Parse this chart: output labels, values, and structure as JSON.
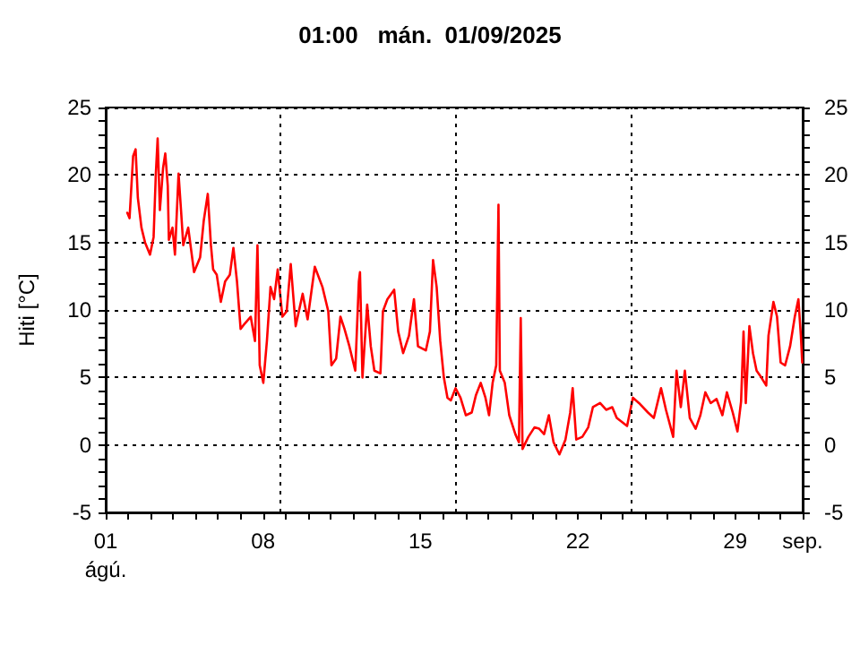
{
  "chart_data": {
    "type": "line",
    "title": "01:00   mán.  01/09/2025",
    "ylabel": "Hiti [°C]",
    "x": [
      1.96,
      2.06,
      2.22,
      2.33,
      2.43,
      2.59,
      2.75,
      2.97,
      3.13,
      3.23,
      3.31,
      3.41,
      3.55,
      3.65,
      3.76,
      3.81,
      3.97,
      4.08,
      4.24,
      4.35,
      4.45,
      4.67,
      4.93,
      5.2,
      5.36,
      5.54,
      5.68,
      5.78,
      5.94,
      6.12,
      6.31,
      6.52,
      6.68,
      6.84,
      7.0,
      7.19,
      7.45,
      7.64,
      7.75,
      7.85,
      8.01,
      8.17,
      8.33,
      8.49,
      8.65,
      8.86,
      9.05,
      9.23,
      9.45,
      9.76,
      9.98,
      10.3,
      10.64,
      10.9,
      11.04,
      11.25,
      11.44,
      11.62,
      11.84,
      12.1,
      12.26,
      12.31,
      12.42,
      12.63,
      12.79,
      12.95,
      13.22,
      13.33,
      13.53,
      13.83,
      14.01,
      14.23,
      14.49,
      14.71,
      14.89,
      15.24,
      15.42,
      15.56,
      15.72,
      15.88,
      16.04,
      16.2,
      16.35,
      16.56,
      16.78,
      17.02,
      17.28,
      17.47,
      17.68,
      17.89,
      18.05,
      18.21,
      18.37,
      18.47,
      18.53,
      18.75,
      18.95,
      19.22,
      19.38,
      19.46,
      19.54,
      19.8,
      20.07,
      20.28,
      20.5,
      20.71,
      20.92,
      21.18,
      21.45,
      21.66,
      21.77,
      21.93,
      22.2,
      22.46,
      22.67,
      22.99,
      23.26,
      23.53,
      23.73,
      24.19,
      24.45,
      24.72,
      25.12,
      25.38,
      25.7,
      25.92,
      26.24,
      26.39,
      26.58,
      26.76,
      26.98,
      27.24,
      27.45,
      27.67,
      27.91,
      28.17,
      28.43,
      28.63,
      28.89,
      29.1,
      29.26,
      29.37,
      29.47,
      29.63,
      29.79,
      29.95,
      30.16,
      30.38,
      30.48,
      30.7,
      30.86,
      31.02,
      31.22,
      31.44,
      31.65,
      31.81,
      31.92,
      31.98
    ],
    "series": [
      {
        "color": "#ff0000",
        "values": [
          17.2,
          16.8,
          21.4,
          21.9,
          18.3,
          16.1,
          15,
          14.1,
          15.4,
          20.1,
          22.7,
          17.4,
          20.5,
          21.6,
          19.2,
          15.2,
          16.1,
          14.1,
          20.1,
          17.4,
          14.8,
          16.1,
          12.8,
          13.9,
          16.6,
          18.6,
          14.8,
          13,
          12.6,
          10.6,
          12.1,
          12.6,
          14.6,
          12.1,
          8.6,
          9,
          9.5,
          7.7,
          14.8,
          5.9,
          4.6,
          7.7,
          11.7,
          10.8,
          13,
          9.5,
          9.9,
          13.4,
          8.8,
          11.2,
          9.3,
          13.2,
          11.7,
          9.9,
          5.9,
          6.4,
          9.5,
          8.6,
          7.3,
          5.5,
          12.1,
          12.8,
          5,
          10.4,
          7.3,
          5.5,
          5.3,
          9.9,
          10.8,
          11.5,
          8.4,
          6.8,
          8.1,
          10.8,
          7.3,
          7,
          8.4,
          13.7,
          11.7,
          7.7,
          5,
          3.5,
          3.3,
          4.2,
          3.5,
          2.2,
          2.4,
          3.7,
          4.6,
          3.5,
          2.2,
          4.6,
          5.9,
          17.8,
          5.5,
          4.6,
          2.2,
          0.8,
          0.2,
          9.4,
          -0.3,
          0.6,
          1.3,
          1.2,
          0.8,
          2.2,
          0.2,
          -0.7,
          0.4,
          2.4,
          4.2,
          0.4,
          0.6,
          1.3,
          2.8,
          3.1,
          2.6,
          2.8,
          2,
          1.4,
          3.5,
          3.1,
          2.4,
          2,
          4.2,
          2.6,
          0.6,
          5.5,
          2.8,
          5.5,
          2,
          1.2,
          2.2,
          3.9,
          3.1,
          3.4,
          2.2,
          3.9,
          2.4,
          1,
          3.2,
          8.4,
          3.1,
          8.8,
          6.8,
          5.5,
          5,
          4.4,
          8.1,
          10.6,
          9.5,
          6.1,
          5.9,
          7.3,
          9.5,
          10.8,
          8.1,
          6.1
        ]
      }
    ],
    "xlim": [
      1,
      32
    ],
    "xticks": [
      {
        "value": 1,
        "label": "01\nágú."
      },
      {
        "value": 2,
        "label": null
      },
      {
        "value": 3,
        "label": null
      },
      {
        "value": 4,
        "label": null
      },
      {
        "value": 5,
        "label": null
      },
      {
        "value": 6,
        "label": null
      },
      {
        "value": 7,
        "label": null
      },
      {
        "value": 8,
        "label": "08"
      },
      {
        "value": 9,
        "label": null
      },
      {
        "value": 10,
        "label": null
      },
      {
        "value": 11,
        "label": null
      },
      {
        "value": 12,
        "label": null
      },
      {
        "value": 13,
        "label": null
      },
      {
        "value": 14,
        "label": null
      },
      {
        "value": 15,
        "label": "15"
      },
      {
        "value": 16,
        "label": null
      },
      {
        "value": 17,
        "label": null
      },
      {
        "value": 18,
        "label": null
      },
      {
        "value": 19,
        "label": null
      },
      {
        "value": 20,
        "label": null
      },
      {
        "value": 21,
        "label": null
      },
      {
        "value": 22,
        "label": "22"
      },
      {
        "value": 23,
        "label": null
      },
      {
        "value": 24,
        "label": null
      },
      {
        "value": 25,
        "label": null
      },
      {
        "value": 26,
        "label": null
      },
      {
        "value": 27,
        "label": null
      },
      {
        "value": 28,
        "label": null
      },
      {
        "value": 29,
        "label": "29"
      },
      {
        "value": 30,
        "label": null
      },
      {
        "value": 31,
        "label": null
      },
      {
        "value": 32,
        "label": "sep."
      }
    ],
    "ylim": [
      -5,
      25
    ],
    "yticks": [
      -5,
      {
        "value": -4,
        "label": null
      },
      {
        "value": -3,
        "label": null
      },
      {
        "value": -2,
        "label": null
      },
      {
        "value": -1,
        "label": null
      },
      0,
      {
        "value": 1,
        "label": null
      },
      {
        "value": 2,
        "label": null
      },
      {
        "value": 3,
        "label": null
      },
      {
        "value": 4,
        "label": null
      },
      5,
      {
        "value": 6,
        "label": null
      },
      {
        "value": 7,
        "label": null
      },
      {
        "value": 8,
        "label": null
      },
      {
        "value": 9,
        "label": null
      },
      10,
      {
        "value": 11,
        "label": null
      },
      {
        "value": 12,
        "label": null
      },
      {
        "value": 13,
        "label": null
      },
      {
        "value": 14,
        "label": null
      },
      15,
      {
        "value": 16,
        "label": null
      },
      {
        "value": 17,
        "label": null
      },
      {
        "value": 18,
        "label": null
      },
      {
        "value": 19,
        "label": null
      },
      20,
      {
        "value": 21,
        "label": null
      },
      {
        "value": 22,
        "label": null
      },
      {
        "value": 23,
        "label": null
      },
      {
        "value": 24,
        "label": null
      },
      25
    ],
    "y2lim": [
      -5,
      25
    ],
    "y2ticks": [
      -5,
      {
        "value": -4,
        "label": null
      },
      {
        "value": -3,
        "label": null
      },
      {
        "value": -2,
        "label": null
      },
      {
        "value": -1,
        "label": null
      },
      0,
      {
        "value": 1,
        "label": null
      },
      {
        "value": 2,
        "label": null
      },
      {
        "value": 3,
        "label": null
      },
      {
        "value": 4,
        "label": null
      },
      5,
      {
        "value": 6,
        "label": null
      },
      {
        "value": 7,
        "label": null
      },
      {
        "value": 8,
        "label": null
      },
      {
        "value": 9,
        "label": null
      },
      10,
      {
        "value": 11,
        "label": null
      },
      {
        "value": 12,
        "label": null
      },
      {
        "value": 13,
        "label": null
      },
      {
        "value": 14,
        "label": null
      },
      15,
      {
        "value": 16,
        "label": null
      },
      {
        "value": 17,
        "label": null
      },
      {
        "value": 18,
        "label": null
      },
      {
        "value": 19,
        "label": null
      },
      20,
      {
        "value": 21,
        "label": null
      },
      {
        "value": 22,
        "label": null
      },
      {
        "value": 23,
        "label": null
      },
      {
        "value": 24,
        "label": null
      },
      25
    ],
    "ref_lines": [
      {
        "axis": "x",
        "value": 8.73,
        "color": "#000000",
        "line_style": "dotted"
      },
      {
        "axis": "x",
        "value": 16.54,
        "color": "#000000",
        "line_style": "dotted"
      },
      {
        "axis": "x",
        "value": 24.35,
        "color": "#000000",
        "line_style": "dotted"
      }
    ],
    "grid": "y",
    "marker": "none",
    "line_style": "solid"
  }
}
